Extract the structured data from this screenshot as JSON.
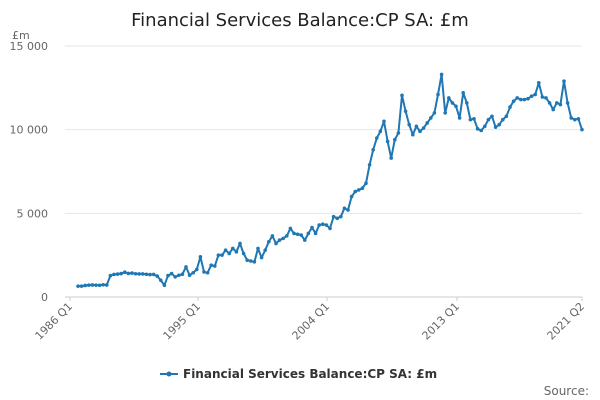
{
  "chart_data": {
    "type": "line",
    "title": "Financial Services Balance:CP SA: £m",
    "ylabel": "£m",
    "xlabel": "",
    "ylim": [
      0,
      15000
    ],
    "y_ticks": [
      0,
      5000,
      10000,
      15000
    ],
    "y_tick_labels": [
      "0",
      "5 000",
      "10 000",
      "15 000"
    ],
    "x_tick_labels": [
      "1986 Q1",
      "1995 Q1",
      "2004 Q1",
      "2013 Q1",
      "2021 Q2"
    ],
    "grid": true,
    "legend_position": "bottom",
    "series": [
      {
        "name": "Financial Services Balance:CP SA: £m",
        "color": "#1f77b4",
        "x_start": "1986 Q1",
        "values": [
          650,
          650,
          690,
          710,
          720,
          710,
          700,
          730,
          720,
          1280,
          1350,
          1370,
          1400,
          1480,
          1410,
          1430,
          1390,
          1380,
          1380,
          1360,
          1340,
          1350,
          1250,
          1000,
          700,
          1280,
          1400,
          1200,
          1300,
          1360,
          1800,
          1300,
          1450,
          1650,
          2400,
          1500,
          1450,
          1900,
          1850,
          2500,
          2500,
          2800,
          2600,
          2900,
          2700,
          3200,
          2600,
          2200,
          2150,
          2100,
          2900,
          2350,
          2800,
          3300,
          3650,
          3200,
          3400,
          3500,
          3650,
          4100,
          3800,
          3750,
          3700,
          3400,
          3800,
          4150,
          3800,
          4300,
          4350,
          4300,
          4100,
          4800,
          4700,
          4800,
          5300,
          5200,
          6000,
          6300,
          6400,
          6500,
          6800,
          7900,
          8800,
          9500,
          9900,
          10500,
          9300,
          8300,
          9400,
          9800,
          12050,
          11100,
          10300,
          9700,
          10200,
          9900,
          10100,
          10400,
          10700,
          11000,
          12100,
          13300,
          11000,
          11900,
          11600,
          11400,
          10700,
          12200,
          11600,
          10600,
          10650,
          10050,
          9950,
          10200,
          10600,
          10800,
          10150,
          10300,
          10600,
          10800,
          11350,
          11700,
          11900,
          11800,
          11800,
          11850,
          12000,
          12100,
          12800,
          11950,
          11900,
          11600,
          11200,
          11600,
          11500,
          12900,
          11600,
          10700,
          10600,
          10650,
          10000
        ]
      }
    ],
    "source_label": "Source:"
  }
}
